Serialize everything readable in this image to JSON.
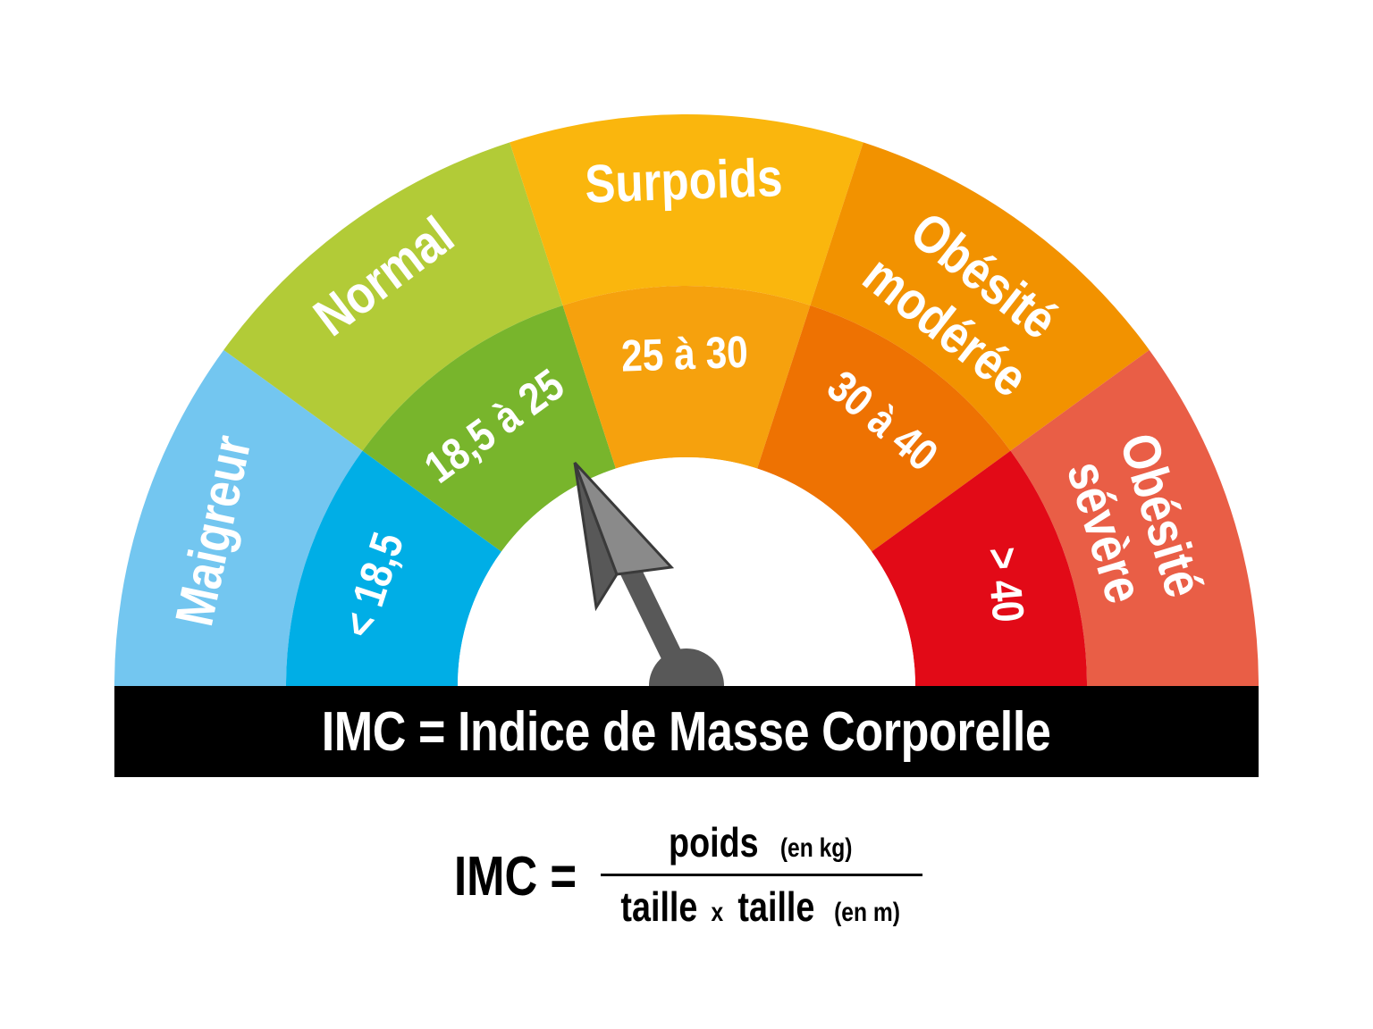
{
  "gauge": {
    "categories": [
      {
        "name": "Maigreur",
        "range": "< 18,5",
        "outer_color": "#73c6f0",
        "inner_color": "#00aee6"
      },
      {
        "name": "Normal",
        "range": "18,5 à 25",
        "outer_color": "#b2cb37",
        "inner_color": "#78b52c"
      },
      {
        "name": "Surpoids",
        "range": "25 à 30",
        "outer_color": "#fab60d",
        "inner_color": "#f6a10d"
      },
      {
        "name_lines": [
          "Obésité",
          "modérée"
        ],
        "range": "30 à 40",
        "outer_color": "#f29200",
        "inner_color": "#ee7202"
      },
      {
        "name_lines": [
          "Obésité",
          "sévère"
        ],
        "range": "> 40",
        "outer_color": "#e95e46",
        "inner_color": "#e20a17"
      }
    ],
    "needle_color": "#585858",
    "needle_tip_color": "#8a8a8a"
  },
  "title": "IMC = Indice de Masse Corporelle",
  "formula": {
    "lhs": "IMC =",
    "numerator_main": "poids",
    "numerator_unit": "(en kg)",
    "denominator_main": "taille",
    "denominator_times": "x",
    "denominator_main2": "taille",
    "denominator_unit": "(en m)"
  }
}
